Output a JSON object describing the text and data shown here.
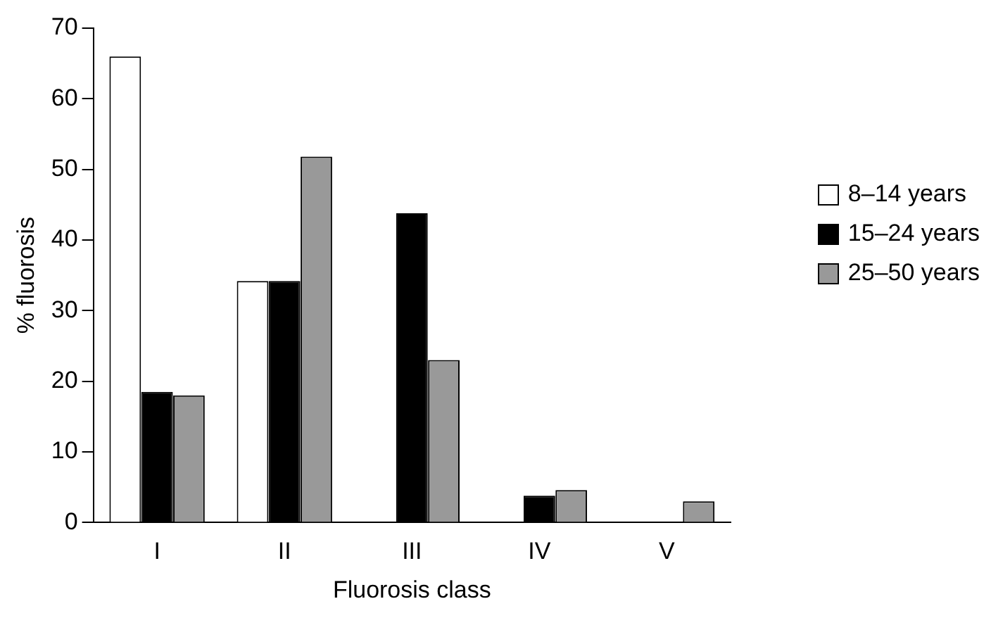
{
  "chart_data": {
    "type": "bar",
    "xlabel": "Fluorosis class",
    "ylabel": "% fluorosis",
    "categories": [
      "I",
      "II",
      "III",
      "IV",
      "V"
    ],
    "series": [
      {
        "name": "8–14 years",
        "color": "#ffffff",
        "values": [
          66,
          34.2,
          0,
          0,
          0
        ]
      },
      {
        "name": "15–24 years",
        "color": "#000000",
        "values": [
          18.5,
          34.2,
          43.8,
          3.8,
          0
        ]
      },
      {
        "name": "25–50 years",
        "color": "#999999",
        "values": [
          18,
          51.8,
          23,
          4.6,
          3
        ]
      }
    ],
    "ylim": [
      0,
      70
    ],
    "yticks": [
      0,
      10,
      20,
      30,
      40,
      50,
      60,
      70
    ],
    "grid": false,
    "legend": "right"
  }
}
